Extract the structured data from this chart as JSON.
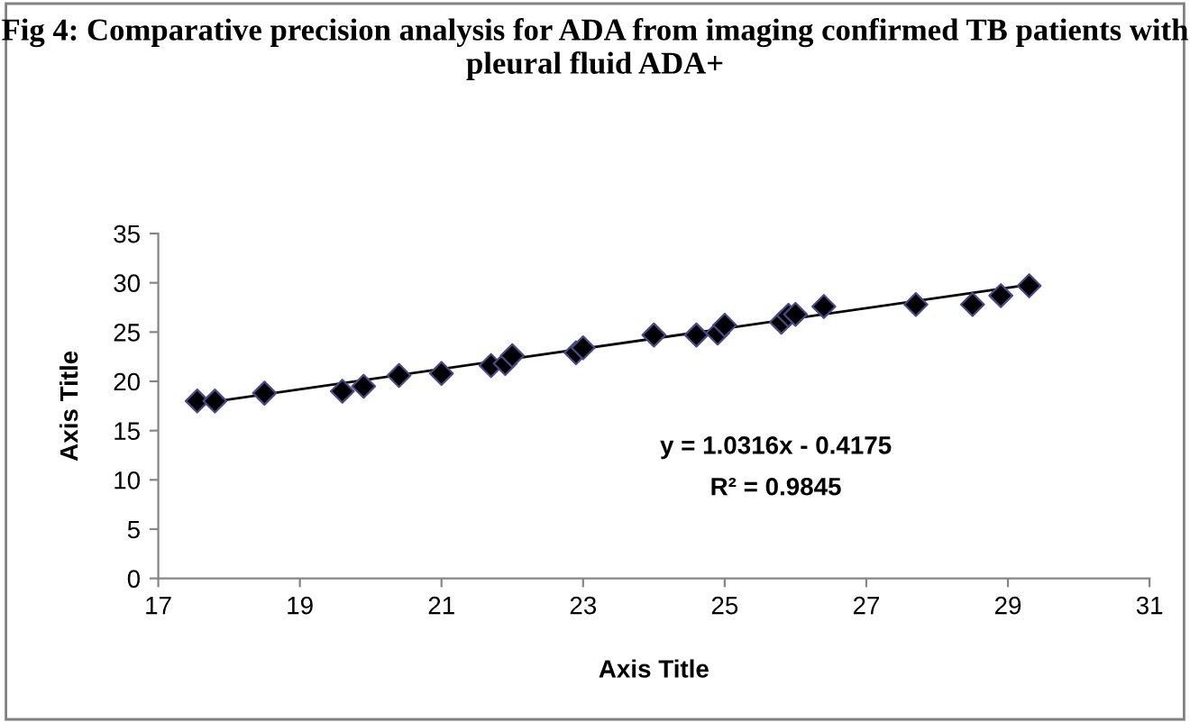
{
  "chart_data": {
    "type": "scatter",
    "title": "Fig 4: Comparative precision analysis for ADA from imaging confirmed TB patients with pleural fluid ADA+",
    "xlabel": "Axis Title",
    "ylabel": "Axis Title",
    "series": [
      {
        "color": "#000000",
        "marker": "diamond",
        "x": [
          17.55,
          17.8,
          18.5,
          19.6,
          19.9,
          20.4,
          21.0,
          21.7,
          21.9,
          22.0,
          22.9,
          23.0,
          24.0,
          24.6,
          24.9,
          25.0,
          25.8,
          25.9,
          26.0,
          26.4,
          27.7,
          28.5,
          28.9,
          29.3
        ],
        "values": [
          18,
          18,
          18.8,
          19,
          19.5,
          20.6,
          20.8,
          21.6,
          21.8,
          22.6,
          22.9,
          23.4,
          24.7,
          24.7,
          24.9,
          25.7,
          26,
          26.7,
          26.8,
          27.6,
          27.8,
          27.8,
          28.7,
          29.7
        ]
      },
      {
        "type": "line",
        "color": "#000000",
        "marker": "none",
        "line_style": "solid",
        "x": [
          17.55,
          29.3
        ],
        "values": [
          17.7,
          29.8
        ]
      }
    ],
    "annotations": [
      "y = 1.0316x - 0.4175",
      "R² = 0.9845"
    ],
    "xlim": [
      17,
      31
    ],
    "xticks": [
      17,
      19,
      21,
      23,
      25,
      27,
      29,
      31
    ],
    "ylim": [
      0,
      35
    ],
    "yticks": [
      0,
      5,
      10,
      15,
      20,
      25,
      30,
      35
    ],
    "grid": false,
    "legend": false
  }
}
